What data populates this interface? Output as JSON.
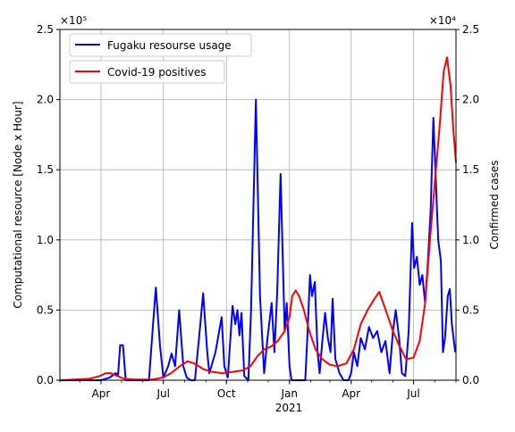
{
  "chart_data": {
    "type": "line",
    "title": "",
    "xlabel": "",
    "year_label": "2021",
    "ylabel_left": "Computational resource [Node x Hour]",
    "ylabel_right": "Confirmed cases",
    "left_multiplier": "×10⁵",
    "right_multiplier": "×10⁴",
    "left_ylim": [
      0,
      2.5
    ],
    "right_ylim": [
      0,
      2.5
    ],
    "yticks_left": [
      "0.0",
      "0.5",
      "1.0",
      "1.5",
      "2.0",
      "2.5"
    ],
    "yticks_right": [
      "0.0",
      "0.5",
      "1.0",
      "1.5",
      "2.0",
      "2.5"
    ],
    "xlim": [
      "2020-02-01",
      "2021-09-01"
    ],
    "xticks": [
      {
        "date": "2020-04-01",
        "label": "Apr"
      },
      {
        "date": "2020-07-01",
        "label": "Jul"
      },
      {
        "date": "2020-10-01",
        "label": "Oct"
      },
      {
        "date": "2021-01-01",
        "label": "Jan"
      },
      {
        "date": "2021-04-01",
        "label": "Apr"
      },
      {
        "date": "2021-07-01",
        "label": "Jul"
      }
    ],
    "grid": true,
    "legend_position": "top-left",
    "series": [
      {
        "name": "Fugaku resourse usage",
        "axis": "left",
        "color": "#0000ff",
        "points": [
          [
            "2020-02-01",
            0
          ],
          [
            "2020-04-01",
            0
          ],
          [
            "2020-04-14",
            0.02
          ],
          [
            "2020-04-22",
            0.05
          ],
          [
            "2020-04-26",
            0.04
          ],
          [
            "2020-04-29",
            0.25
          ],
          [
            "2020-05-03",
            0.25
          ],
          [
            "2020-05-07",
            0
          ],
          [
            "2020-06-10",
            0
          ],
          [
            "2020-06-16",
            0.4
          ],
          [
            "2020-06-20",
            0.66
          ],
          [
            "2020-06-26",
            0.25
          ],
          [
            "2020-07-01",
            0.02
          ],
          [
            "2020-07-08",
            0.1
          ],
          [
            "2020-07-13",
            0.19
          ],
          [
            "2020-07-18",
            0.1
          ],
          [
            "2020-07-24",
            0.5
          ],
          [
            "2020-07-30",
            0.1
          ],
          [
            "2020-08-04",
            0.02
          ],
          [
            "2020-08-10",
            0
          ],
          [
            "2020-08-16",
            0
          ],
          [
            "2020-08-22",
            0.3
          ],
          [
            "2020-08-28",
            0.62
          ],
          [
            "2020-09-03",
            0.2
          ],
          [
            "2020-09-06",
            0.05
          ],
          [
            "2020-09-15",
            0.2
          ],
          [
            "2020-09-24",
            0.45
          ],
          [
            "2020-09-28",
            0.1
          ],
          [
            "2020-10-03",
            0.02
          ],
          [
            "2020-10-10",
            0.53
          ],
          [
            "2020-10-14",
            0.4
          ],
          [
            "2020-10-17",
            0.5
          ],
          [
            "2020-10-20",
            0.32
          ],
          [
            "2020-10-23",
            0.48
          ],
          [
            "2020-10-27",
            0.03
          ],
          [
            "2020-11-02",
            0
          ],
          [
            "2020-11-06",
            0.5
          ],
          [
            "2020-11-13",
            2.0
          ],
          [
            "2020-11-19",
            0.6
          ],
          [
            "2020-11-25",
            0.05
          ],
          [
            "2020-11-30",
            0.3
          ],
          [
            "2020-12-06",
            0.55
          ],
          [
            "2020-12-10",
            0.2
          ],
          [
            "2020-12-14",
            0.62
          ],
          [
            "2020-12-19",
            1.47
          ],
          [
            "2020-12-25",
            0.35
          ],
          [
            "2020-12-28",
            0.55
          ],
          [
            "2021-01-01",
            0.1
          ],
          [
            "2021-01-04",
            0
          ],
          [
            "2021-01-24",
            0
          ],
          [
            "2021-01-27",
            0.3
          ],
          [
            "2021-01-31",
            0.75
          ],
          [
            "2021-02-03",
            0.6
          ],
          [
            "2021-02-07",
            0.7
          ],
          [
            "2021-02-11",
            0.2
          ],
          [
            "2021-02-14",
            0.05
          ],
          [
            "2021-02-18",
            0.28
          ],
          [
            "2021-02-22",
            0.48
          ],
          [
            "2021-02-26",
            0.3
          ],
          [
            "2021-03-02",
            0.2
          ],
          [
            "2021-03-05",
            0.58
          ],
          [
            "2021-03-09",
            0.15
          ],
          [
            "2021-03-15",
            0.05
          ],
          [
            "2021-03-21",
            0
          ],
          [
            "2021-03-28",
            0
          ],
          [
            "2021-04-01",
            0.05
          ],
          [
            "2021-04-05",
            0.2
          ],
          [
            "2021-04-10",
            0.1
          ],
          [
            "2021-04-15",
            0.3
          ],
          [
            "2021-04-21",
            0.22
          ],
          [
            "2021-04-27",
            0.38
          ],
          [
            "2021-05-03",
            0.3
          ],
          [
            "2021-05-09",
            0.35
          ],
          [
            "2021-05-15",
            0.2
          ],
          [
            "2021-05-21",
            0.28
          ],
          [
            "2021-05-27",
            0.05
          ],
          [
            "2021-06-01",
            0.35
          ],
          [
            "2021-06-05",
            0.5
          ],
          [
            "2021-06-10",
            0.3
          ],
          [
            "2021-06-14",
            0.05
          ],
          [
            "2021-06-19",
            0.03
          ],
          [
            "2021-06-24",
            0.35
          ],
          [
            "2021-06-29",
            1.12
          ],
          [
            "2021-07-02",
            0.8
          ],
          [
            "2021-07-06",
            0.88
          ],
          [
            "2021-07-10",
            0.68
          ],
          [
            "2021-07-14",
            0.75
          ],
          [
            "2021-07-18",
            0.55
          ],
          [
            "2021-07-22",
            0.85
          ],
          [
            "2021-07-26",
            1.2
          ],
          [
            "2021-07-30",
            1.87
          ],
          [
            "2021-08-02",
            1.5
          ],
          [
            "2021-08-06",
            1.0
          ],
          [
            "2021-08-10",
            0.85
          ],
          [
            "2021-08-13",
            0.2
          ],
          [
            "2021-08-16",
            0.3
          ],
          [
            "2021-08-20",
            0.6
          ],
          [
            "2021-08-23",
            0.65
          ],
          [
            "2021-08-26",
            0.4
          ],
          [
            "2021-08-31",
            0.2
          ]
        ]
      },
      {
        "name": "Covid-19 positives",
        "axis": "right",
        "color": "#ff0000",
        "points": [
          [
            "2020-02-01",
            0
          ],
          [
            "2020-03-15",
            0.01
          ],
          [
            "2020-03-30",
            0.03
          ],
          [
            "2020-04-08",
            0.05
          ],
          [
            "2020-04-15",
            0.05
          ],
          [
            "2020-04-25",
            0.03
          ],
          [
            "2020-05-05",
            0.01
          ],
          [
            "2020-05-20",
            0.005
          ],
          [
            "2020-06-15",
            0.005
          ],
          [
            "2020-07-01",
            0.02
          ],
          [
            "2020-07-12",
            0.05
          ],
          [
            "2020-07-25",
            0.1
          ],
          [
            "2020-08-05",
            0.135
          ],
          [
            "2020-08-15",
            0.12
          ],
          [
            "2020-08-28",
            0.08
          ],
          [
            "2020-09-10",
            0.06
          ],
          [
            "2020-09-25",
            0.05
          ],
          [
            "2020-10-10",
            0.06
          ],
          [
            "2020-10-25",
            0.07
          ],
          [
            "2020-11-05",
            0.1
          ],
          [
            "2020-11-15",
            0.17
          ],
          [
            "2020-11-25",
            0.22
          ],
          [
            "2020-12-05",
            0.24
          ],
          [
            "2020-12-15",
            0.28
          ],
          [
            "2020-12-25",
            0.35
          ],
          [
            "2021-01-01",
            0.45
          ],
          [
            "2021-01-05",
            0.6
          ],
          [
            "2021-01-10",
            0.64
          ],
          [
            "2021-01-15",
            0.6
          ],
          [
            "2021-01-22",
            0.5
          ],
          [
            "2021-01-30",
            0.35
          ],
          [
            "2021-02-08",
            0.22
          ],
          [
            "2021-02-18",
            0.15
          ],
          [
            "2021-03-01",
            0.11
          ],
          [
            "2021-03-12",
            0.1
          ],
          [
            "2021-03-25",
            0.12
          ],
          [
            "2021-04-05",
            0.22
          ],
          [
            "2021-04-15",
            0.4
          ],
          [
            "2021-04-25",
            0.5
          ],
          [
            "2021-05-05",
            0.58
          ],
          [
            "2021-05-12",
            0.63
          ],
          [
            "2021-05-20",
            0.52
          ],
          [
            "2021-06-01",
            0.35
          ],
          [
            "2021-06-10",
            0.25
          ],
          [
            "2021-06-20",
            0.15
          ],
          [
            "2021-07-01",
            0.16
          ],
          [
            "2021-07-10",
            0.28
          ],
          [
            "2021-07-18",
            0.55
          ],
          [
            "2021-07-25",
            1.0
          ],
          [
            "2021-08-01",
            1.4
          ],
          [
            "2021-08-08",
            1.8
          ],
          [
            "2021-08-14",
            2.2
          ],
          [
            "2021-08-19",
            2.3
          ],
          [
            "2021-08-24",
            2.1
          ],
          [
            "2021-08-28",
            1.8
          ],
          [
            "2021-09-01",
            1.55
          ]
        ]
      }
    ]
  }
}
